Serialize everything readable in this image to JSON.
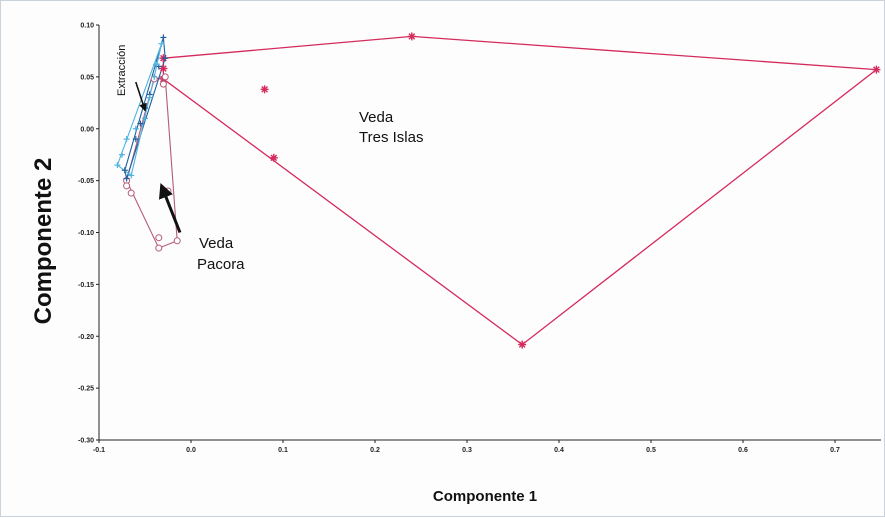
{
  "chart_data": {
    "type": "scatter",
    "title": "",
    "xlabel": "Componente 1",
    "ylabel": "Componente 2",
    "xlim": [
      -0.1,
      0.75
    ],
    "ylim": [
      -0.3,
      0.1
    ],
    "x_ticks": [
      "-0.1",
      "0.0",
      "0.1",
      "0.2",
      "0.3",
      "0.4",
      "0.5",
      "0.6",
      "0.7"
    ],
    "y_ticks": [
      "0.10",
      "0.05",
      "0.00",
      "-0.05",
      "-0.10",
      "-0.15",
      "-0.20",
      "-0.25",
      "-0.30"
    ],
    "grid": false,
    "colors": {
      "tres_islas": "#d42a5c",
      "pacora": "#b45a7a",
      "extraccion_dark": "#1f5f9e",
      "extraccion_light": "#4fb3e0",
      "arrow": "#111111"
    },
    "annotations": {
      "tres_islas_line1": "Veda",
      "tres_islas_line2": "Tres Islas",
      "pacora_line1": "Veda",
      "pacora_line2": "Pacora",
      "extraccion": "Extracción"
    },
    "series": [
      {
        "group": "tres_islas",
        "marker": "star",
        "hull": [
          [
            -0.03,
            0.068
          ],
          [
            0.24,
            0.089
          ],
          [
            0.745,
            0.057
          ],
          [
            0.36,
            -0.208
          ],
          [
            -0.03,
            0.048
          ]
        ],
        "points": [
          [
            -0.03,
            0.068
          ],
          [
            0.24,
            0.089
          ],
          [
            0.745,
            0.057
          ],
          [
            0.36,
            -0.208
          ],
          [
            -0.03,
            0.048
          ],
          [
            0.08,
            0.038
          ],
          [
            0.09,
            -0.028
          ],
          [
            -0.03,
            0.058
          ]
        ]
      },
      {
        "group": "pacora",
        "marker": "circle",
        "hull": [
          [
            -0.028,
            0.05
          ],
          [
            -0.015,
            -0.108
          ],
          [
            -0.035,
            -0.115
          ],
          [
            -0.07,
            -0.05
          ],
          [
            -0.04,
            0.048
          ]
        ],
        "points": [
          [
            -0.028,
            0.05
          ],
          [
            -0.015,
            -0.108
          ],
          [
            -0.035,
            -0.115
          ],
          [
            -0.035,
            -0.105
          ],
          [
            -0.07,
            -0.05
          ],
          [
            -0.065,
            -0.062
          ],
          [
            -0.07,
            -0.055
          ],
          [
            -0.04,
            0.048
          ],
          [
            -0.025,
            -0.06
          ],
          [
            -0.03,
            0.043
          ]
        ]
      },
      {
        "group": "extraccion_dark",
        "marker": "plus",
        "hull": [
          [
            -0.03,
            0.088
          ],
          [
            -0.028,
            0.068
          ],
          [
            -0.07,
            -0.048
          ],
          [
            -0.072,
            -0.04
          ]
        ],
        "points": [
          [
            -0.03,
            0.088
          ],
          [
            -0.028,
            0.068
          ],
          [
            -0.07,
            -0.048
          ],
          [
            -0.072,
            -0.04
          ],
          [
            -0.05,
            0.02
          ],
          [
            -0.045,
            0.033
          ],
          [
            -0.055,
            0.005
          ],
          [
            -0.035,
            0.06
          ],
          [
            -0.06,
            -0.01
          ]
        ]
      },
      {
        "group": "extraccion_light",
        "marker": "plus",
        "hull": [
          [
            -0.032,
            0.082
          ],
          [
            -0.04,
            0.05
          ],
          [
            -0.065,
            -0.045
          ],
          [
            -0.08,
            -0.035
          ]
        ],
        "points": [
          [
            -0.032,
            0.082
          ],
          [
            -0.04,
            0.05
          ],
          [
            -0.065,
            -0.045
          ],
          [
            -0.08,
            -0.035
          ],
          [
            -0.075,
            -0.025
          ],
          [
            -0.07,
            -0.01
          ],
          [
            -0.06,
            0.0
          ],
          [
            -0.05,
            0.01
          ],
          [
            -0.045,
            0.03
          ],
          [
            -0.038,
            0.062
          ]
        ]
      }
    ],
    "arrows": [
      {
        "from": [
          -0.06,
          0.045
        ],
        "to": [
          -0.05,
          0.018
        ]
      },
      {
        "from": [
          -0.012,
          -0.1
        ],
        "to": [
          -0.032,
          -0.055
        ]
      }
    ]
  }
}
